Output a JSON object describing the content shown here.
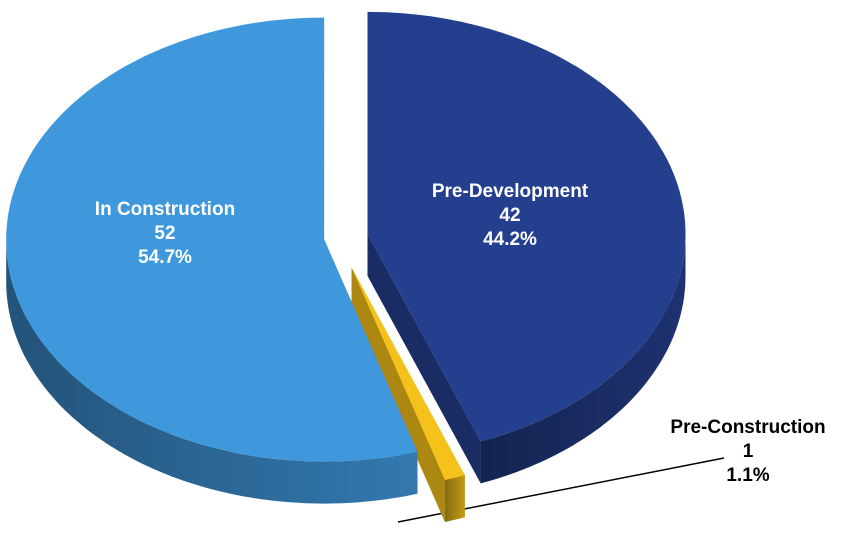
{
  "chart_data": {
    "type": "pie3d",
    "categories": [
      "Pre-Development",
      "Pre-Construction",
      "In Construction"
    ],
    "values": [
      42,
      1,
      52
    ],
    "percent_labels": [
      "44.2%",
      "1.1%",
      "54.7%"
    ],
    "colors": [
      "#253f8f",
      "#f5c21b",
      "#3f97dc"
    ]
  }
}
